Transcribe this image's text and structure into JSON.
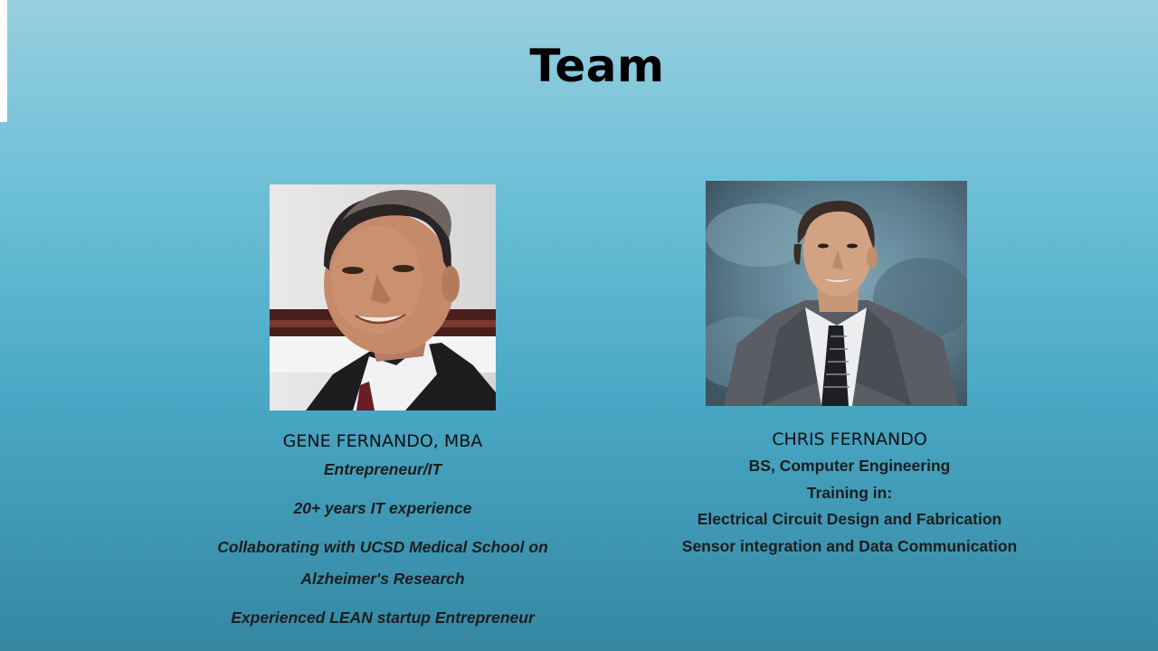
{
  "slide": {
    "title": "Team"
  },
  "members": [
    {
      "name": "GENE FERNANDO, MBA",
      "lines": [
        "Entrepreneur/IT",
        "20+ years IT experience",
        "Collaborating with UCSD Medical School on",
        "Alzheimer's Research",
        "Experienced LEAN startup Entrepreneur"
      ]
    },
    {
      "name": "CHRIS FERNANDO",
      "lines": [
        "BS, Computer Engineering",
        "Training in:",
        "Electrical Circuit Design and Fabrication",
        "Sensor integration and Data Communication"
      ]
    }
  ],
  "colors": {
    "background_top": "#98cfe0",
    "background_bottom": "#3587a2",
    "text": "#111111"
  }
}
